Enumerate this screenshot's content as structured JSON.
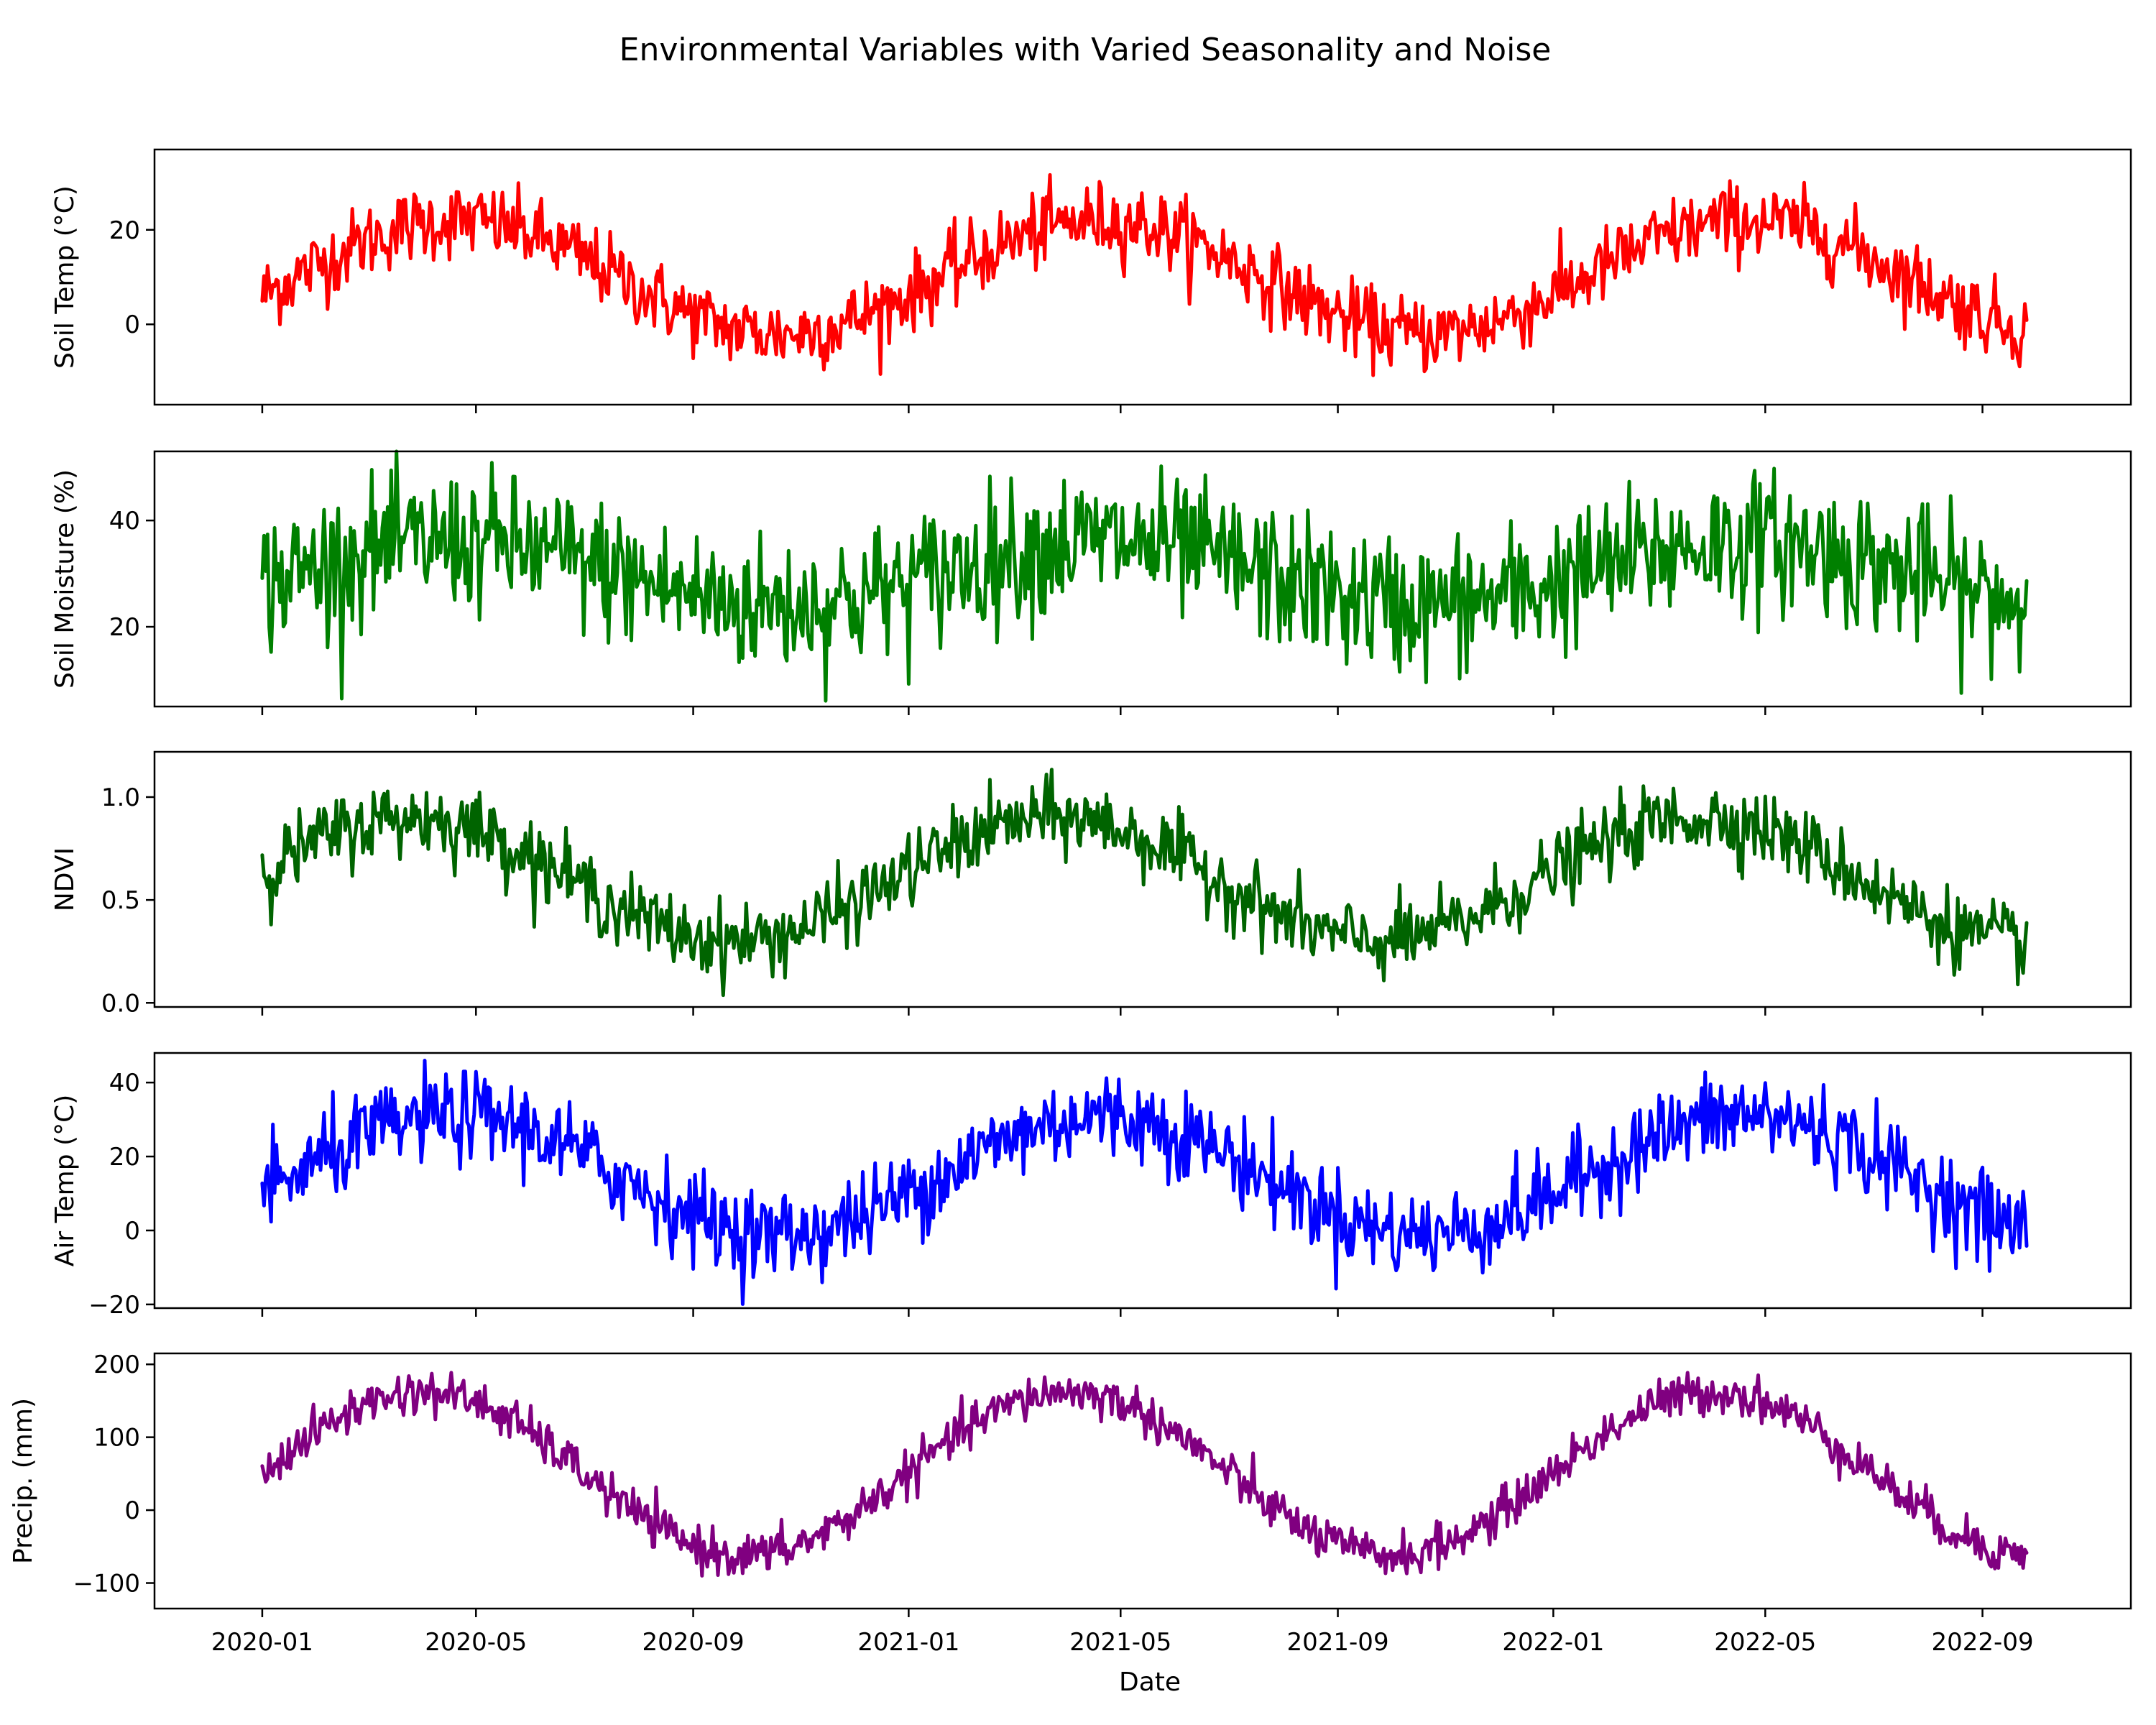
{
  "chart_data": {
    "type": "line",
    "title": "Environmental Variables with Varied Seasonality and Noise",
    "xlabel": "Date",
    "x_start": "2020-01-01",
    "x_end": "2022-09-26",
    "x_ticks": [
      "2020-01",
      "2020-05",
      "2020-09",
      "2021-01",
      "2021-05",
      "2021-09",
      "2022-01",
      "2022-05",
      "2022-09"
    ],
    "x_range": [
      "2019-11-01",
      "2022-11-24"
    ],
    "shared_x": true,
    "grid": false,
    "panels": [
      {
        "ylabel": "Soil Temp (°C)",
        "color": "#ff0000",
        "ylim": [
          -17,
          37
        ],
        "yticks": [
          "0",
          "20"
        ],
        "mean": 10,
        "amplitude": 12,
        "peak": "2020-04-20",
        "noise": 4.0
      },
      {
        "ylabel": "Soil Moisture (%)",
        "color": "#008000",
        "ylim": [
          5,
          53
        ],
        "yticks": [
          "20",
          "40"
        ],
        "mean": 30,
        "amplitude": 6,
        "peak": "2020-04-20",
        "noise": 6.5
      },
      {
        "ylabel": "NDVI",
        "color": "#006400",
        "ylim": [
          -0.02,
          1.22
        ],
        "yticks": [
          "0.0",
          "0.5",
          "1.0"
        ],
        "mean": 0.6,
        "amplitude": 0.3,
        "peak": "2020-03-25",
        "noise": 0.09
      },
      {
        "ylabel": "Air Temp (°C)",
        "color": "#0000ff",
        "ylim": [
          -21,
          48
        ],
        "yticks": [
          "−20",
          "0",
          "20",
          "40"
        ],
        "mean": 15,
        "amplitude": 16,
        "peak": "2020-04-20",
        "noise": 6.0
      },
      {
        "ylabel": "Precip. (mm)",
        "color": "#800080",
        "ylim": [
          -135,
          215
        ],
        "yticks": [
          "−100",
          "0",
          "100",
          "200"
        ],
        "mean": 50,
        "amplitude": 112,
        "peak": "2020-04-01",
        "noise": 15
      }
    ]
  }
}
